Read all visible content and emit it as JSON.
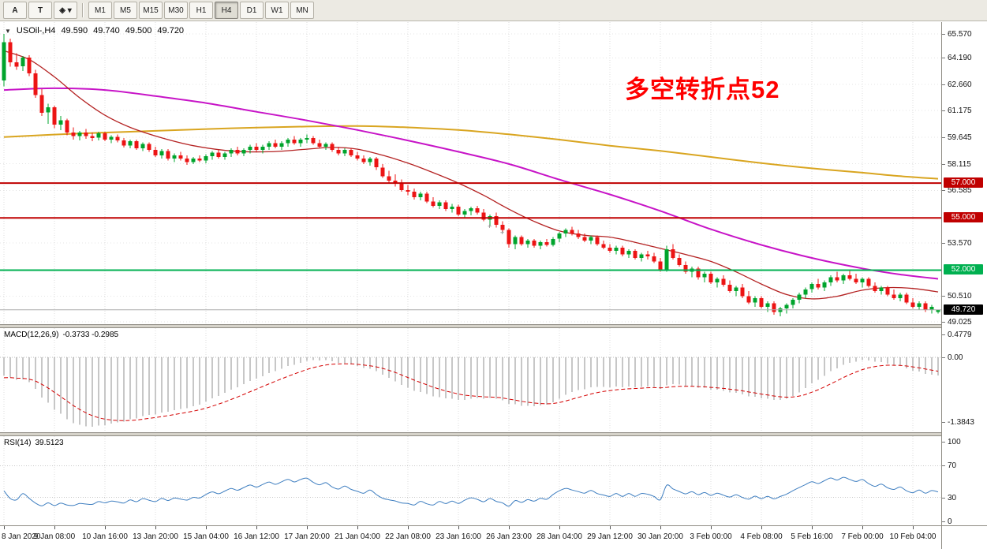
{
  "toolbar": {
    "tools": [
      {
        "name": "arrow-tool",
        "label": "A"
      },
      {
        "name": "text-tool",
        "label": "T"
      },
      {
        "name": "objects-dropdown",
        "label": "◈ ▾"
      }
    ],
    "timeframes": [
      "M1",
      "M5",
      "M15",
      "M30",
      "H1",
      "H4",
      "D1",
      "W1",
      "MN"
    ],
    "active_timeframe": "H4"
  },
  "chart_data": {
    "type": "candlestick",
    "symbol_header": {
      "symbol": "USOil-,H4",
      "open": "49.590",
      "high": "49.740",
      "low": "49.500",
      "close": "49.720"
    },
    "annotation": {
      "text": "多空转折点52",
      "color": "#FF0000"
    },
    "time_labels": [
      "8 Jan 2020",
      "9 Jan 08:00",
      "10 Jan 16:00",
      "13 Jan 20:00",
      "15 Jan 04:00",
      "16 Jan 12:00",
      "17 Jan 20:00",
      "21 Jan 04:00",
      "22 Jan 08:00",
      "23 Jan 16:00",
      "26 Jan 23:00",
      "28 Jan 04:00",
      "29 Jan 12:00",
      "30 Jan 20:00",
      "3 Feb 00:00",
      "4 Feb 08:00",
      "5 Feb 16:00",
      "7 Feb 00:00",
      "10 Feb 04:00"
    ],
    "price_scale_labels": [
      "65.570",
      "64.190",
      "62.660",
      "61.175",
      "59.645",
      "58.115",
      "56.585",
      "53.570",
      "50.510",
      "49.025"
    ],
    "h_lines": [
      {
        "label": "57.000",
        "value": 57.0,
        "color": "#C00000"
      },
      {
        "label": "55.000",
        "value": 55.0,
        "color": "#C00000"
      },
      {
        "label": "52.000",
        "value": 52.0,
        "color": "#00B050"
      }
    ],
    "current_price": {
      "label": "49.720",
      "value": 49.72,
      "tag_color": "#000000"
    },
    "candle_colors": {
      "up": "#00A42C",
      "down": "#EC1414"
    },
    "candles": [
      [
        62.9,
        65.57,
        62.55,
        65.1
      ],
      [
        65.1,
        65.3,
        63.7,
        63.95
      ],
      [
        63.95,
        64.45,
        63.5,
        63.7
      ],
      [
        63.7,
        64.3,
        63.45,
        64.2
      ],
      [
        64.2,
        64.35,
        63.15,
        63.3
      ],
      [
        63.3,
        63.5,
        61.9,
        62.05
      ],
      [
        62.05,
        62.4,
        60.85,
        61.05
      ],
      [
        61.05,
        61.55,
        60.4,
        61.35
      ],
      [
        61.35,
        61.45,
        60.15,
        60.35
      ],
      [
        60.35,
        60.85,
        60.05,
        60.6
      ],
      [
        60.6,
        60.7,
        59.75,
        59.9
      ],
      [
        59.9,
        60.2,
        59.5,
        59.7
      ],
      [
        59.7,
        60.0,
        59.45,
        59.9
      ],
      [
        59.9,
        60.1,
        59.55,
        59.7
      ],
      [
        59.7,
        59.9,
        59.4,
        59.6
      ],
      [
        59.6,
        59.95,
        59.45,
        59.85
      ],
      [
        59.85,
        59.95,
        59.4,
        59.5
      ],
      [
        59.5,
        59.75,
        59.3,
        59.65
      ],
      [
        59.65,
        59.8,
        59.35,
        59.45
      ],
      [
        59.45,
        59.6,
        59.05,
        59.15
      ],
      [
        59.15,
        59.5,
        59.0,
        59.4
      ],
      [
        59.4,
        59.5,
        58.9,
        59.0
      ],
      [
        59.0,
        59.35,
        58.85,
        59.25
      ],
      [
        59.25,
        59.35,
        58.8,
        58.9
      ],
      [
        58.9,
        59.1,
        58.5,
        58.6
      ],
      [
        58.6,
        58.95,
        58.4,
        58.85
      ],
      [
        58.85,
        58.95,
        58.3,
        58.4
      ],
      [
        58.4,
        58.7,
        58.2,
        58.6
      ],
      [
        58.6,
        58.8,
        58.3,
        58.4
      ],
      [
        58.4,
        58.6,
        58.05,
        58.2
      ],
      [
        58.2,
        58.5,
        58.1,
        58.4
      ],
      [
        58.4,
        58.6,
        58.2,
        58.3
      ],
      [
        58.3,
        58.65,
        58.15,
        58.55
      ],
      [
        58.55,
        58.85,
        58.35,
        58.75
      ],
      [
        58.75,
        58.9,
        58.4,
        58.5
      ],
      [
        58.5,
        58.8,
        58.35,
        58.7
      ],
      [
        58.7,
        59.0,
        58.5,
        58.9
      ],
      [
        58.9,
        59.1,
        58.6,
        58.7
      ],
      [
        58.7,
        59.0,
        58.55,
        58.9
      ],
      [
        58.9,
        59.2,
        58.7,
        59.1
      ],
      [
        59.1,
        59.3,
        58.8,
        58.9
      ],
      [
        58.9,
        59.2,
        58.7,
        59.1
      ],
      [
        59.1,
        59.4,
        58.9,
        59.3
      ],
      [
        59.3,
        59.5,
        59.0,
        59.1
      ],
      [
        59.1,
        59.4,
        58.9,
        59.3
      ],
      [
        59.3,
        59.6,
        59.1,
        59.5
      ],
      [
        59.5,
        59.7,
        59.2,
        59.3
      ],
      [
        59.3,
        59.6,
        59.1,
        59.5
      ],
      [
        59.5,
        59.8,
        59.3,
        59.6
      ],
      [
        59.6,
        59.7,
        59.2,
        59.3
      ],
      [
        59.3,
        59.5,
        59.0,
        59.1
      ],
      [
        59.1,
        59.35,
        58.9,
        59.25
      ],
      [
        59.25,
        59.35,
        58.8,
        58.9
      ],
      [
        58.9,
        59.1,
        58.6,
        58.7
      ],
      [
        58.7,
        59.0,
        58.55,
        58.9
      ],
      [
        58.9,
        59.0,
        58.5,
        58.6
      ],
      [
        58.6,
        58.8,
        58.3,
        58.4
      ],
      [
        58.4,
        58.6,
        58.1,
        58.2
      ],
      [
        58.2,
        58.5,
        58.0,
        58.4
      ],
      [
        58.4,
        58.5,
        57.75,
        57.9
      ],
      [
        57.9,
        58.1,
        57.3,
        57.4
      ],
      [
        57.4,
        57.7,
        57.0,
        57.15
      ],
      [
        57.15,
        57.5,
        56.8,
        56.95
      ],
      [
        56.95,
        57.2,
        56.5,
        56.6
      ],
      [
        56.6,
        56.9,
        56.3,
        56.5
      ],
      [
        56.5,
        56.7,
        56.05,
        56.2
      ],
      [
        56.2,
        56.5,
        56.0,
        56.4
      ],
      [
        56.4,
        56.5,
        55.85,
        55.95
      ],
      [
        55.95,
        56.2,
        55.6,
        55.7
      ],
      [
        55.7,
        56.0,
        55.5,
        55.9
      ],
      [
        55.9,
        56.0,
        55.4,
        55.5
      ],
      [
        55.5,
        55.8,
        55.3,
        55.65
      ],
      [
        55.65,
        55.75,
        55.1,
        55.2
      ],
      [
        55.2,
        55.5,
        55.0,
        55.4
      ],
      [
        55.4,
        55.65,
        55.15,
        55.55
      ],
      [
        55.55,
        55.7,
        55.2,
        55.3
      ],
      [
        55.3,
        55.5,
        54.8,
        54.9
      ],
      [
        54.9,
        55.2,
        54.55,
        55.1
      ],
      [
        55.1,
        55.3,
        54.45,
        54.6
      ],
      [
        54.6,
        54.8,
        54.2,
        54.3
      ],
      [
        54.3,
        54.4,
        53.3,
        53.5
      ],
      [
        53.5,
        54.0,
        53.2,
        53.9
      ],
      [
        53.9,
        54.0,
        53.4,
        53.5
      ],
      [
        53.5,
        53.8,
        53.3,
        53.7
      ],
      [
        53.7,
        53.8,
        53.3,
        53.4
      ],
      [
        53.4,
        53.7,
        53.2,
        53.6
      ],
      [
        53.6,
        53.8,
        53.35,
        53.45
      ],
      [
        53.45,
        53.9,
        53.35,
        53.8
      ],
      [
        53.8,
        54.2,
        53.6,
        54.1
      ],
      [
        54.1,
        54.4,
        53.9,
        54.3
      ],
      [
        54.3,
        54.5,
        54.0,
        54.1
      ],
      [
        54.1,
        54.3,
        53.8,
        53.9
      ],
      [
        53.9,
        54.1,
        53.6,
        53.7
      ],
      [
        53.7,
        54.0,
        53.5,
        53.9
      ],
      [
        53.9,
        54.0,
        53.4,
        53.5
      ],
      [
        53.5,
        53.7,
        53.2,
        53.3
      ],
      [
        53.3,
        53.5,
        53.0,
        53.1
      ],
      [
        53.1,
        53.4,
        52.9,
        53.3
      ],
      [
        53.3,
        53.4,
        52.8,
        52.9
      ],
      [
        52.9,
        53.2,
        52.7,
        53.1
      ],
      [
        53.1,
        53.2,
        52.6,
        52.7
      ],
      [
        52.7,
        53.0,
        52.5,
        52.9
      ],
      [
        52.9,
        53.1,
        52.6,
        52.8
      ],
      [
        52.8,
        53.0,
        52.4,
        52.5
      ],
      [
        52.5,
        52.7,
        51.9,
        52.0
      ],
      [
        52.0,
        53.4,
        51.9,
        53.2
      ],
      [
        53.2,
        53.5,
        52.6,
        52.7
      ],
      [
        52.7,
        52.9,
        52.2,
        52.3
      ],
      [
        52.3,
        52.5,
        51.8,
        51.9
      ],
      [
        51.9,
        52.2,
        51.6,
        52.1
      ],
      [
        52.1,
        52.2,
        51.45,
        51.6
      ],
      [
        51.6,
        51.9,
        51.3,
        51.8
      ],
      [
        51.8,
        51.9,
        51.2,
        51.3
      ],
      [
        51.3,
        51.6,
        51.0,
        51.5
      ],
      [
        51.5,
        51.7,
        51.05,
        51.15
      ],
      [
        51.15,
        51.4,
        50.7,
        50.8
      ],
      [
        50.8,
        51.1,
        50.5,
        51.0
      ],
      [
        51.0,
        51.2,
        50.4,
        50.5
      ],
      [
        50.5,
        50.8,
        50.05,
        50.15
      ],
      [
        50.15,
        50.5,
        49.9,
        50.4
      ],
      [
        50.4,
        50.5,
        49.8,
        49.9
      ],
      [
        49.9,
        50.2,
        49.6,
        50.1
      ],
      [
        50.1,
        50.2,
        49.45,
        49.6
      ],
      [
        49.6,
        49.9,
        49.35,
        49.8
      ],
      [
        49.8,
        50.1,
        49.5,
        50.0
      ],
      [
        50.0,
        50.4,
        49.8,
        50.3
      ],
      [
        50.3,
        50.7,
        50.1,
        50.6
      ],
      [
        50.6,
        51.0,
        50.4,
        50.9
      ],
      [
        50.9,
        51.3,
        50.7,
        51.2
      ],
      [
        51.2,
        51.5,
        50.9,
        51.0
      ],
      [
        51.0,
        51.4,
        50.8,
        51.3
      ],
      [
        51.3,
        51.7,
        51.1,
        51.6
      ],
      [
        51.6,
        51.9,
        51.3,
        51.4
      ],
      [
        51.4,
        51.8,
        51.2,
        51.7
      ],
      [
        51.7,
        52.0,
        51.4,
        51.5
      ],
      [
        51.5,
        51.8,
        51.2,
        51.3
      ],
      [
        51.3,
        51.6,
        51.0,
        51.5
      ],
      [
        51.5,
        51.6,
        51.0,
        51.1
      ],
      [
        51.1,
        51.3,
        50.7,
        50.8
      ],
      [
        50.8,
        51.1,
        50.6,
        51.0
      ],
      [
        51.0,
        51.1,
        50.5,
        50.6
      ],
      [
        50.6,
        50.9,
        50.3,
        50.4
      ],
      [
        50.4,
        50.7,
        50.2,
        50.6
      ],
      [
        50.6,
        50.7,
        50.05,
        50.15
      ],
      [
        50.15,
        50.4,
        49.8,
        49.9
      ],
      [
        49.9,
        50.2,
        49.7,
        50.1
      ],
      [
        50.1,
        50.2,
        49.6,
        49.7
      ],
      [
        49.7,
        50.0,
        49.5,
        49.9
      ],
      [
        49.59,
        49.74,
        49.5,
        49.72
      ]
    ],
    "ma_lines": [
      {
        "name": "ma-slow-orange",
        "color": "#D9A520",
        "width": 2,
        "anchors": [
          [
            0,
            59.65
          ],
          [
            12,
            59.85
          ],
          [
            24,
            60.0
          ],
          [
            36,
            60.15
          ],
          [
            48,
            60.25
          ],
          [
            56,
            60.28
          ],
          [
            64,
            60.2
          ],
          [
            72,
            60.05
          ],
          [
            80,
            59.8
          ],
          [
            88,
            59.5
          ],
          [
            96,
            59.15
          ],
          [
            104,
            58.85
          ],
          [
            112,
            58.5
          ],
          [
            120,
            58.15
          ],
          [
            128,
            57.85
          ],
          [
            136,
            57.6
          ],
          [
            142,
            57.4
          ],
          [
            148,
            57.25
          ]
        ]
      },
      {
        "name": "ma-mid-magenta",
        "color": "#C714C7",
        "width": 2,
        "anchors": [
          [
            0,
            62.35
          ],
          [
            8,
            62.45
          ],
          [
            16,
            62.35
          ],
          [
            24,
            62.0
          ],
          [
            32,
            61.6
          ],
          [
            40,
            61.1
          ],
          [
            48,
            60.6
          ],
          [
            56,
            60.05
          ],
          [
            64,
            59.45
          ],
          [
            72,
            58.8
          ],
          [
            80,
            58.1
          ],
          [
            88,
            57.2
          ],
          [
            96,
            56.35
          ],
          [
            104,
            55.4
          ],
          [
            112,
            54.35
          ],
          [
            120,
            53.45
          ],
          [
            128,
            52.7
          ],
          [
            136,
            52.1
          ],
          [
            142,
            51.75
          ],
          [
            148,
            51.5
          ]
        ]
      },
      {
        "name": "ma-fast-red",
        "color": "#B42222",
        "width": 1.3,
        "anchors": [
          [
            0,
            64.6
          ],
          [
            4,
            64.1
          ],
          [
            8,
            63.1
          ],
          [
            12,
            61.9
          ],
          [
            16,
            60.9
          ],
          [
            20,
            60.2
          ],
          [
            25,
            59.6
          ],
          [
            30,
            59.15
          ],
          [
            36,
            58.85
          ],
          [
            42,
            58.8
          ],
          [
            48,
            58.95
          ],
          [
            52,
            59.05
          ],
          [
            56,
            58.95
          ],
          [
            60,
            58.6
          ],
          [
            64,
            58.15
          ],
          [
            68,
            57.6
          ],
          [
            72,
            57.0
          ],
          [
            76,
            56.3
          ],
          [
            80,
            55.5
          ],
          [
            84,
            54.8
          ],
          [
            88,
            54.25
          ],
          [
            92,
            54.0
          ],
          [
            96,
            53.9
          ],
          [
            100,
            53.6
          ],
          [
            104,
            53.25
          ],
          [
            108,
            52.9
          ],
          [
            112,
            52.5
          ],
          [
            116,
            51.9
          ],
          [
            120,
            51.2
          ],
          [
            124,
            50.6
          ],
          [
            128,
            50.35
          ],
          [
            132,
            50.5
          ],
          [
            136,
            50.85
          ],
          [
            140,
            51.0
          ],
          [
            144,
            50.95
          ],
          [
            148,
            50.75
          ]
        ]
      }
    ],
    "marks": [
      {
        "i": 77,
        "price": 54.38,
        "glyph": "+"
      },
      {
        "i": 79,
        "price": 54.02,
        "glyph": "+"
      }
    ],
    "indicators": [
      {
        "name": "MACD",
        "label": "MACD(12,26,9)",
        "values_text": "-0.3733 -0.2985",
        "params": {
          "fast": 12,
          "slow": 26,
          "signal": 9
        },
        "scale_labels": [
          {
            "text": "0.4779",
            "value": 0.4779
          },
          {
            "text": "0.00",
            "value": 0
          },
          {
            "text": "-1.3843",
            "value": -1.3843
          }
        ],
        "colors": {
          "histogram": "#8F8F8F",
          "signal": "#D40000"
        }
      },
      {
        "name": "RSI",
        "label": "RSI(14)",
        "value_text": "39.5123",
        "params": {
          "period": 14
        },
        "scale_labels": [
          {
            "text": "100",
            "value": 100
          },
          {
            "text": "70",
            "value": 70
          },
          {
            "text": "30",
            "value": 30
          },
          {
            "text": "0",
            "value": 0
          }
        ],
        "levels": [
          70,
          30
        ],
        "color": "#3E7EC0"
      }
    ]
  }
}
